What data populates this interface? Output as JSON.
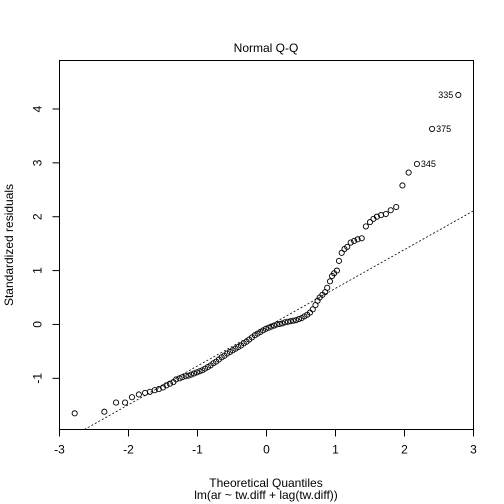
{
  "chart_data": {
    "type": "scatter",
    "title": "Normal Q-Q",
    "xlabel": "Theoretical Quantiles",
    "subtitle": "lm(ar ~ tw.diff + lag(tw.diff))",
    "ylabel": "Standardized residuals",
    "xlim": [
      -3,
      3
    ],
    "ylim": [
      -1.95,
      4.9
    ],
    "x_ticks": [
      -3,
      -2,
      -1,
      0,
      1,
      2,
      3
    ],
    "y_ticks": [
      -1,
      0,
      1,
      2,
      3,
      4
    ],
    "grid": false,
    "reference_line": {
      "slope": 0.72,
      "intercept": -0.05,
      "style": "dotted"
    },
    "labeled_points": [
      {
        "label": "335",
        "x": 2.78,
        "y": 4.26
      },
      {
        "label": "375",
        "x": 2.4,
        "y": 3.63
      },
      {
        "label": "345",
        "x": 2.18,
        "y": 2.98
      }
    ],
    "points": [
      [
        -2.78,
        -1.65
      ],
      [
        -2.35,
        -1.62
      ],
      [
        -2.18,
        -1.45
      ],
      [
        -2.05,
        -1.45
      ],
      [
        -1.95,
        -1.35
      ],
      [
        -1.85,
        -1.3
      ],
      [
        -1.76,
        -1.27
      ],
      [
        -1.69,
        -1.25
      ],
      [
        -1.62,
        -1.22
      ],
      [
        -1.56,
        -1.2
      ],
      [
        -1.5,
        -1.17
      ],
      [
        -1.45,
        -1.13
      ],
      [
        -1.4,
        -1.1
      ],
      [
        -1.35,
        -1.07
      ],
      [
        -1.31,
        -1.02
      ],
      [
        -1.26,
        -1.0
      ],
      [
        -1.22,
        -0.98
      ],
      [
        -1.17,
        -0.96
      ],
      [
        -1.13,
        -0.95
      ],
      [
        -1.09,
        -0.93
      ],
      [
        -1.05,
        -0.91
      ],
      [
        -1.01,
        -0.89
      ],
      [
        -0.97,
        -0.87
      ],
      [
        -0.93,
        -0.85
      ],
      [
        -0.89,
        -0.82
      ],
      [
        -0.85,
        -0.79
      ],
      [
        -0.81,
        -0.76
      ],
      [
        -0.77,
        -0.72
      ],
      [
        -0.73,
        -0.69
      ],
      [
        -0.69,
        -0.65
      ],
      [
        -0.65,
        -0.61
      ],
      [
        -0.61,
        -0.58
      ],
      [
        -0.57,
        -0.54
      ],
      [
        -0.53,
        -0.51
      ],
      [
        -0.49,
        -0.48
      ],
      [
        -0.45,
        -0.45
      ],
      [
        -0.41,
        -0.42
      ],
      [
        -0.37,
        -0.39
      ],
      [
        -0.33,
        -0.35
      ],
      [
        -0.29,
        -0.32
      ],
      [
        -0.25,
        -0.28
      ],
      [
        -0.21,
        -0.24
      ],
      [
        -0.17,
        -0.2
      ],
      [
        -0.13,
        -0.17
      ],
      [
        -0.09,
        -0.14
      ],
      [
        -0.05,
        -0.11
      ],
      [
        -0.01,
        -0.08
      ],
      [
        0.03,
        -0.06
      ],
      [
        0.07,
        -0.04
      ],
      [
        0.11,
        -0.02
      ],
      [
        0.15,
        0.0
      ],
      [
        0.19,
        0.01
      ],
      [
        0.23,
        0.02
      ],
      [
        0.27,
        0.04
      ],
      [
        0.31,
        0.05
      ],
      [
        0.35,
        0.06
      ],
      [
        0.39,
        0.07
      ],
      [
        0.43,
        0.08
      ],
      [
        0.47,
        0.1
      ],
      [
        0.51,
        0.12
      ],
      [
        0.55,
        0.15
      ],
      [
        0.59,
        0.18
      ],
      [
        0.63,
        0.22
      ],
      [
        0.67,
        0.28
      ],
      [
        0.71,
        0.36
      ],
      [
        0.74,
        0.44
      ],
      [
        0.77,
        0.5
      ],
      [
        0.81,
        0.55
      ],
      [
        0.85,
        0.6
      ],
      [
        0.88,
        0.68
      ],
      [
        0.92,
        0.8
      ],
      [
        0.95,
        0.9
      ],
      [
        0.98,
        0.95
      ],
      [
        1.02,
        1.0
      ],
      [
        1.05,
        1.18
      ],
      [
        1.09,
        1.33
      ],
      [
        1.13,
        1.4
      ],
      [
        1.17,
        1.44
      ],
      [
        1.22,
        1.52
      ],
      [
        1.27,
        1.55
      ],
      [
        1.32,
        1.58
      ],
      [
        1.38,
        1.6
      ],
      [
        1.44,
        1.82
      ],
      [
        1.5,
        1.9
      ],
      [
        1.55,
        1.96
      ],
      [
        1.6,
        2.0
      ],
      [
        1.66,
        2.03
      ],
      [
        1.73,
        2.05
      ],
      [
        1.8,
        2.12
      ],
      [
        1.88,
        2.18
      ],
      [
        1.97,
        2.58
      ],
      [
        2.06,
        2.82
      ],
      [
        2.18,
        2.98
      ],
      [
        2.4,
        3.63
      ],
      [
        2.78,
        4.26
      ]
    ]
  }
}
